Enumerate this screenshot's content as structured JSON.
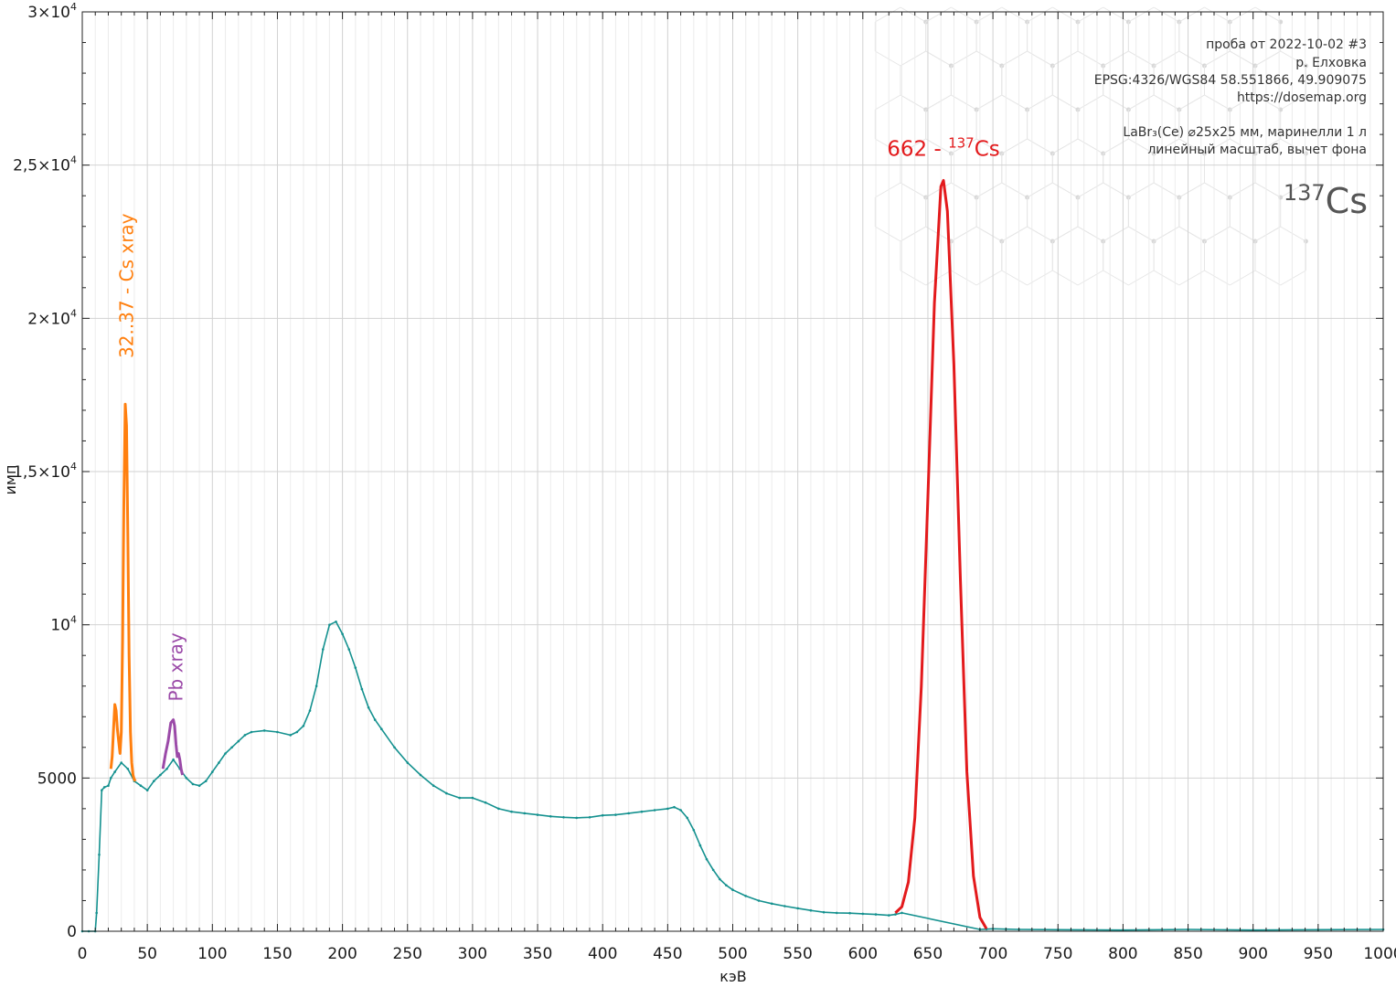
{
  "chart_data": {
    "type": "line",
    "xlabel": "кэВ",
    "ylabel": "имп",
    "xlim": [
      0,
      1000
    ],
    "ylim": [
      0,
      30000
    ],
    "grid": true,
    "x_ticks": [
      0,
      50,
      100,
      150,
      200,
      250,
      300,
      350,
      400,
      450,
      500,
      550,
      600,
      650,
      700,
      750,
      800,
      850,
      900,
      950,
      1000
    ],
    "x_tick_labels": [
      "0",
      "50",
      "100",
      "150",
      "200",
      "250",
      "300",
      "350",
      "400",
      "450",
      "500",
      "550",
      "600",
      "650",
      "700",
      "750",
      "800",
      "850",
      "900",
      "950",
      "1000"
    ],
    "y_ticks": [
      {
        "value": 0,
        "base": "0",
        "exp": ""
      },
      {
        "value": 5000,
        "base": "5000",
        "exp": ""
      },
      {
        "value": 10000,
        "base": "10",
        "exp": "4"
      },
      {
        "value": 15000,
        "base": "1,5×10",
        "exp": "4"
      },
      {
        "value": 20000,
        "base": "2×10",
        "exp": "4"
      },
      {
        "value": 25000,
        "base": "2,5×10",
        "exp": "4"
      },
      {
        "value": 30000,
        "base": "3×10",
        "exp": "4"
      }
    ],
    "info_lines": [
      "проба от 2022-10-02 #3",
      "р. Елховка",
      "EPSG:4326/WGS84  58.551866, 49.909075",
      "https://dosemap.org",
      "",
      "LaBr₃(Ce) ⌀25x25 мм, маринелли 1 л",
      "линейный масштаб, вычет фона"
    ],
    "isotope": {
      "mass": "137",
      "symbol": "Cs"
    },
    "annotations": [
      {
        "id": "cs-xray",
        "text": "32..37 - Cs xray",
        "color": "#ff7f0e",
        "rotated": true,
        "x": 34,
        "y": 18700
      },
      {
        "id": "pb-xray",
        "text": "Pb xray",
        "color": "#9b4aa8",
        "rotated": true,
        "x": 72,
        "y": 7500
      },
      {
        "id": "cs137-peak",
        "text_main": "662 - ",
        "sup": "137",
        "text_tail": "Cs",
        "color": "#e31a1c",
        "rotated": false,
        "x": 662,
        "y": 25300
      }
    ],
    "series": [
      {
        "name": "spectrum",
        "color": "#14918f",
        "x": [
          0,
          5,
          10,
          11,
          13,
          15,
          17,
          20,
          22,
          25,
          30,
          35,
          40,
          45,
          50,
          55,
          60,
          65,
          70,
          75,
          80,
          85,
          90,
          95,
          100,
          105,
          110,
          115,
          120,
          125,
          130,
          140,
          150,
          160,
          165,
          170,
          175,
          180,
          185,
          190,
          195,
          200,
          205,
          210,
          215,
          220,
          225,
          230,
          240,
          250,
          260,
          270,
          280,
          290,
          300,
          310,
          320,
          330,
          340,
          350,
          360,
          370,
          380,
          390,
          400,
          410,
          420,
          430,
          440,
          450,
          455,
          460,
          465,
          470,
          475,
          480,
          485,
          490,
          495,
          500,
          510,
          520,
          530,
          540,
          550,
          560,
          570,
          580,
          590,
          600,
          610,
          620,
          625,
          630,
          690,
          695,
          700,
          710,
          720,
          750,
          800,
          850,
          900,
          950,
          1000
        ],
        "y": [
          0,
          0,
          0,
          600,
          2500,
          4600,
          4700,
          4750,
          5000,
          5200,
          5500,
          5300,
          4900,
          4750,
          4600,
          4900,
          5100,
          5300,
          5600,
          5300,
          5000,
          4800,
          4750,
          4900,
          5200,
          5500,
          5800,
          6000,
          6200,
          6400,
          6500,
          6550,
          6500,
          6400,
          6500,
          6700,
          7200,
          8000,
          9200,
          10000,
          10100,
          9700,
          9200,
          8600,
          7900,
          7300,
          6900,
          6600,
          6000,
          5500,
          5100,
          4750,
          4500,
          4350,
          4350,
          4200,
          4000,
          3900,
          3850,
          3800,
          3750,
          3720,
          3700,
          3720,
          3780,
          3800,
          3850,
          3900,
          3950,
          4000,
          4050,
          3950,
          3700,
          3300,
          2800,
          2350,
          2000,
          1700,
          1500,
          1350,
          1150,
          1000,
          900,
          820,
          750,
          680,
          620,
          600,
          590,
          570,
          550,
          520,
          550,
          600,
          60,
          70,
          80,
          70,
          60,
          50,
          40,
          60,
          40,
          50,
          60
        ]
      },
      {
        "name": "cs-xray",
        "color": "#ff7f0e",
        "x": [
          22,
          23,
          24,
          25,
          26,
          27,
          28,
          29,
          30,
          31,
          32,
          33,
          34,
          35,
          36,
          37,
          38,
          39,
          40,
          41
        ],
        "y": [
          5300,
          5700,
          6600,
          7400,
          7200,
          6600,
          6200,
          5800,
          6500,
          9500,
          14000,
          17200,
          16500,
          13000,
          9000,
          6500,
          5500,
          5100,
          4950,
          4900
        ]
      },
      {
        "name": "pb-xray",
        "color": "#9b4aa8",
        "x": [
          62,
          64,
          66,
          68,
          70,
          71,
          72,
          73,
          74,
          75,
          76,
          77
        ],
        "y": [
          5300,
          5800,
          6200,
          6800,
          6900,
          6700,
          6100,
          5700,
          5800,
          5600,
          5300,
          5100
        ]
      },
      {
        "name": "cs137-peak",
        "color": "#e31a1c",
        "x": [
          625,
          630,
          635,
          640,
          645,
          650,
          655,
          660,
          662,
          665,
          670,
          675,
          680,
          685,
          690,
          695
        ],
        "y": [
          600,
          800,
          1600,
          3700,
          8000,
          14200,
          20500,
          24300,
          24500,
          23500,
          18500,
          11500,
          5200,
          1800,
          450,
          80
        ]
      }
    ]
  }
}
